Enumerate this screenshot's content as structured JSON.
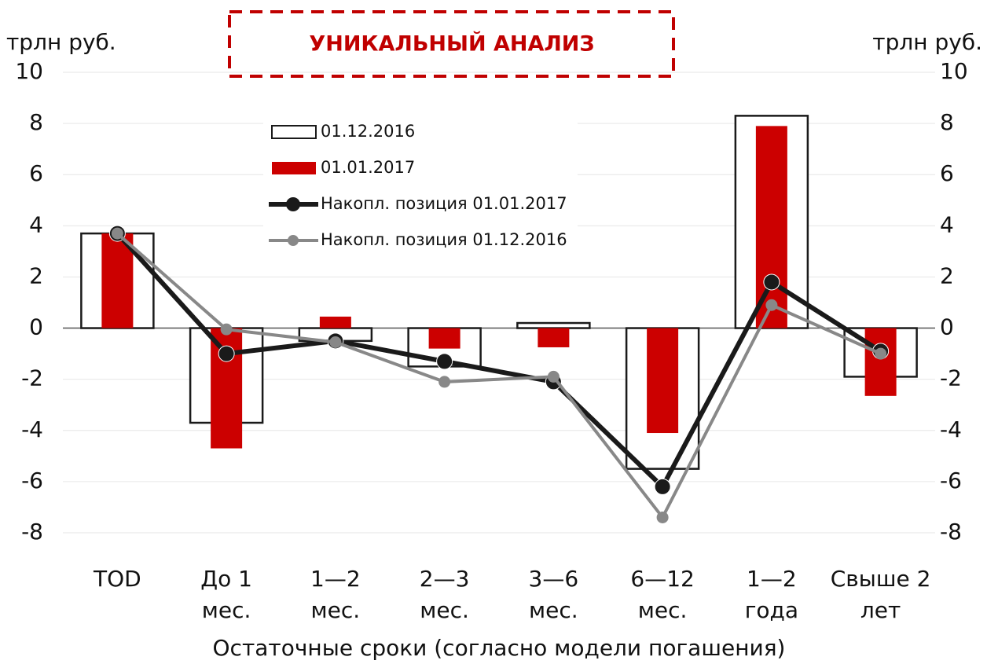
{
  "chart_data": {
    "type": "bar_line",
    "title": "УНИКАЛЬНЫЙ АНАЛИЗ",
    "y_label": "трлн руб.",
    "y2_label": "трлн руб.",
    "x_label": "Остаточные сроки (согласно модели погашения)",
    "categories": [
      [
        "TOD"
      ],
      [
        "До 1",
        "мес."
      ],
      [
        "1—2",
        "мес."
      ],
      [
        "2—3",
        "мес."
      ],
      [
        "3—6",
        "мес."
      ],
      [
        "6—12",
        "мес."
      ],
      [
        "1—2",
        "года"
      ],
      [
        "Свыше 2",
        "лет"
      ]
    ],
    "ylim": [
      -8,
      10
    ],
    "yticks": [
      -8,
      -6,
      -4,
      -2,
      0,
      2,
      4,
      6,
      8,
      10
    ],
    "y2lim": [
      -8,
      10
    ],
    "y2ticks": [
      -8,
      -6,
      -4,
      -2,
      0,
      2,
      4,
      6,
      8,
      10
    ],
    "grid": true,
    "series": [
      {
        "name": "01.12.2016",
        "kind": "bar",
        "style": "outline",
        "color": "#1a1a1a",
        "values": [
          3.7,
          -3.7,
          -0.5,
          -1.5,
          0.2,
          -5.5,
          8.3,
          -1.9
        ]
      },
      {
        "name": "01.01.2017",
        "kind": "bar",
        "style": "filled",
        "color": "#cc0000",
        "values": [
          3.7,
          -4.7,
          0.45,
          -0.8,
          -0.75,
          -4.1,
          7.9,
          -2.65
        ]
      },
      {
        "name": "Накопл. позиция 01.01.2017",
        "kind": "line",
        "color": "#1a1a1a",
        "values": [
          3.7,
          -1.0,
          -0.5,
          -1.3,
          -2.1,
          -6.2,
          1.8,
          -0.9
        ]
      },
      {
        "name": "Накопл. позиция 01.12.2016",
        "kind": "line",
        "color": "#888888",
        "values": [
          3.7,
          -0.05,
          -0.55,
          -2.1,
          -1.9,
          -7.4,
          0.9,
          -1.0
        ]
      }
    ]
  }
}
